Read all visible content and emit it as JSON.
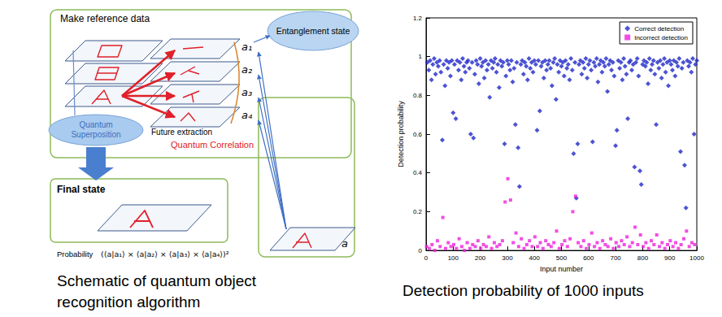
{
  "diagram": {
    "make_reference_data": "Make reference data",
    "entanglement_state": "Entanglement state",
    "references": [
      "a₁",
      "a₂",
      "a₃",
      "a₄"
    ],
    "input": "a",
    "quantum_superposition": [
      "Quantum",
      "Superposition"
    ],
    "future_extraction": "Future extraction",
    "quantum_correlation": "Quantum Correlation",
    "final_state": "Final state",
    "probability": "Probability",
    "formula": "(⟨a|a₁⟩ × ⟨a|a₂⟩ × ⟨a|a₃⟩ × ⟨a|a₄⟩)²"
  },
  "captions": {
    "left": [
      "Schematic of quantum object",
      "recognition algorithm"
    ],
    "right": "Detection probability of 1000 inputs"
  },
  "chart_data": {
    "type": "scatter",
    "xlabel": "Input number",
    "ylabel": "Detection probability",
    "xlim": [
      0,
      1000
    ],
    "xticks": [
      0,
      100,
      200,
      300,
      400,
      500,
      600,
      700,
      800,
      900,
      1000
    ],
    "ylim": [
      0,
      1.2
    ],
    "yticks": [
      0,
      0.2,
      0.4,
      0.6,
      0.8,
      1,
      1.2
    ],
    "grid": false,
    "legend": "top-right",
    "series": [
      {
        "name": "Correct detection",
        "color": "#1f28c8",
        "marker": "diamond",
        "x": [
          5,
          10,
          15,
          20,
          25,
          30,
          35,
          40,
          45,
          50,
          55,
          60,
          65,
          70,
          75,
          80,
          85,
          90,
          95,
          100,
          105,
          110,
          115,
          120,
          125,
          130,
          135,
          140,
          145,
          150,
          155,
          160,
          165,
          170,
          175,
          180,
          185,
          190,
          195,
          200,
          205,
          210,
          215,
          220,
          225,
          230,
          235,
          240,
          245,
          250,
          255,
          260,
          265,
          270,
          275,
          280,
          285,
          290,
          295,
          300,
          305,
          310,
          315,
          320,
          325,
          330,
          335,
          340,
          345,
          350,
          355,
          360,
          365,
          370,
          375,
          380,
          385,
          390,
          395,
          400,
          405,
          410,
          415,
          420,
          425,
          430,
          435,
          440,
          445,
          450,
          455,
          460,
          465,
          470,
          475,
          480,
          485,
          490,
          495,
          500,
          505,
          510,
          515,
          520,
          525,
          530,
          535,
          540,
          545,
          550,
          555,
          560,
          565,
          570,
          575,
          580,
          585,
          590,
          595,
          600,
          605,
          610,
          615,
          620,
          625,
          630,
          635,
          640,
          645,
          650,
          655,
          660,
          665,
          670,
          675,
          680,
          685,
          690,
          695,
          700,
          705,
          710,
          715,
          720,
          725,
          730,
          735,
          740,
          745,
          750,
          755,
          760,
          765,
          770,
          775,
          780,
          785,
          790,
          795,
          800,
          805,
          810,
          815,
          820,
          825,
          830,
          835,
          840,
          845,
          850,
          855,
          860,
          865,
          870,
          875,
          880,
          885,
          890,
          895,
          900,
          905,
          910,
          915,
          920,
          925,
          930,
          935,
          940,
          945,
          950,
          955,
          960,
          965,
          970,
          975,
          980,
          985,
          990,
          995,
          1000
        ],
        "values": [
          0.97,
          0.93,
          0.98,
          0.88,
          0.96,
          0.99,
          0.91,
          0.97,
          0.95,
          0.98,
          0.92,
          0.57,
          0.96,
          0.85,
          0.98,
          0.94,
          0.97,
          0.9,
          0.98,
          0.71,
          0.96,
          0.68,
          0.98,
          0.93,
          0.97,
          0.88,
          0.99,
          0.95,
          0.92,
          0.97,
          0.98,
          0.94,
          0.6,
          0.97,
          0.58,
          0.91,
          0.98,
          0.96,
          0.86,
          0.99,
          0.95,
          0.97,
          0.89,
          0.98,
          0.93,
          0.96,
          0.79,
          0.98,
          0.94,
          0.97,
          0.99,
          0.92,
          0.96,
          0.84,
          0.98,
          0.95,
          0.97,
          0.55,
          0.9,
          0.98,
          0.96,
          0.93,
          0.98,
          0.87,
          0.94,
          0.65,
          0.97,
          0.53,
          0.33,
          0.96,
          0.98,
          0.91,
          0.97,
          0.95,
          0.88,
          0.99,
          0.94,
          0.97,
          0.92,
          0.98,
          0.96,
          0.62,
          0.98,
          0.72,
          0.95,
          0.97,
          0.89,
          0.98,
          0.93,
          0.96,
          0.98,
          0.94,
          0.85,
          0.97,
          0.99,
          0.78,
          0.96,
          0.92,
          0.98,
          0.95,
          0.97,
          0.9,
          0.98,
          0.94,
          0.96,
          0.88,
          0.99,
          0.93,
          0.5,
          0.97,
          0.27,
          0.55,
          0.96,
          0.98,
          0.91,
          0.97,
          0.94,
          0.99,
          0.89,
          0.96,
          0.98,
          0.93,
          0.56,
          0.97,
          0.95,
          0.99,
          0.87,
          0.96,
          0.98,
          0.92,
          0.97,
          0.95,
          0.99,
          0.82,
          0.96,
          0.98,
          0.93,
          0.97,
          0.9,
          0.54,
          0.62,
          0.98,
          0.94,
          0.97,
          0.88,
          0.99,
          0.95,
          0.91,
          0.68,
          0.97,
          0.98,
          0.93,
          0.96,
          0.43,
          0.97,
          0.99,
          0.9,
          0.41,
          0.34,
          0.96,
          0.98,
          0.95,
          0.97,
          0.86,
          0.99,
          0.93,
          0.96,
          0.98,
          0.91,
          0.65,
          0.97,
          0.94,
          0.98,
          0.89,
          0.96,
          0.99,
          0.92,
          0.97,
          0.85,
          0.98,
          0.96,
          0.93,
          0.98,
          0.9,
          0.97,
          0.95,
          0.99,
          0.51,
          0.94,
          0.97,
          0.44,
          0.22,
          0.98,
          0.95,
          0.97,
          0.92,
          0.99,
          0.6,
          0.96,
          0.98
        ]
      },
      {
        "name": "Incorrect detection",
        "color": "#ee22dd",
        "marker": "square",
        "x": [
          2,
          12,
          22,
          32,
          42,
          52,
          62,
          72,
          82,
          92,
          102,
          112,
          122,
          132,
          142,
          152,
          162,
          172,
          182,
          192,
          202,
          212,
          222,
          232,
          242,
          252,
          262,
          272,
          282,
          292,
          302,
          312,
          322,
          332,
          342,
          352,
          362,
          372,
          382,
          392,
          402,
          412,
          422,
          432,
          442,
          452,
          462,
          472,
          482,
          492,
          502,
          512,
          522,
          532,
          542,
          552,
          562,
          572,
          582,
          592,
          602,
          612,
          622,
          632,
          642,
          652,
          662,
          672,
          682,
          692,
          702,
          712,
          722,
          732,
          742,
          752,
          762,
          772,
          782,
          792,
          802,
          812,
          822,
          832,
          842,
          852,
          862,
          872,
          882,
          892,
          902,
          912,
          922,
          932,
          942,
          952,
          962,
          972,
          982,
          992
        ],
        "values": [
          0.02,
          0.01,
          0.03,
          0.0,
          0.05,
          0.02,
          0.17,
          0.01,
          0.04,
          0.02,
          0.03,
          0.01,
          0.06,
          0.02,
          0.0,
          0.04,
          0.01,
          0.03,
          0.02,
          0.05,
          0.01,
          0.03,
          0.02,
          0.07,
          0.01,
          0.04,
          0.02,
          0.03,
          0.05,
          0.25,
          0.37,
          0.26,
          0.04,
          0.09,
          0.02,
          0.06,
          0.01,
          0.03,
          0.05,
          0.02,
          0.07,
          0.02,
          0.04,
          0.01,
          0.05,
          0.03,
          0.02,
          0.04,
          0.1,
          0.01,
          0.03,
          0.05,
          0.02,
          0.06,
          0.2,
          0.28,
          0.04,
          0.02,
          0.05,
          0.01,
          0.03,
          0.09,
          0.02,
          0.04,
          0.01,
          0.05,
          0.03,
          0.02,
          0.06,
          0.01,
          0.04,
          0.02,
          0.05,
          0.03,
          0.07,
          0.02,
          0.04,
          0.12,
          0.03,
          0.08,
          0.02,
          0.04,
          0.01,
          0.05,
          0.03,
          0.08,
          0.02,
          0.04,
          0.01,
          0.03,
          0.05,
          0.02,
          0.04,
          0.01,
          0.03,
          0.06,
          0.1,
          0.02,
          0.04,
          0.03
        ]
      }
    ]
  }
}
